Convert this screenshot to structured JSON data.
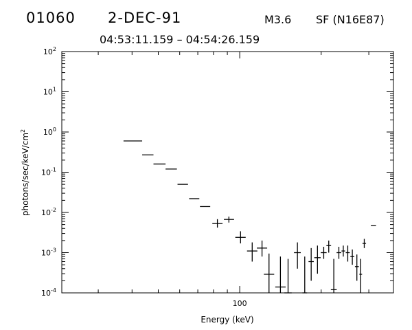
{
  "header": {
    "event_number": "01060",
    "date": "2-DEC-91",
    "goes_class": "M3.6",
    "flare_location": "SF (N16E87)",
    "time_range": "04:53:11.159 – 04:54:26.159"
  },
  "chart_data": {
    "type": "scatter",
    "title": "",
    "xlabel": "Energy (keV)",
    "ylabel": "photons/sec/keV/cm²",
    "x_scale": "log",
    "y_scale": "log",
    "xlim": [
      22,
      370
    ],
    "ylim": [
      0.0001,
      100
    ],
    "x_tick_labels": [
      {
        "value": 100,
        "label": "100"
      }
    ],
    "y_tick_labels": [
      {
        "value": 100,
        "base": "10",
        "exp": "2"
      },
      {
        "value": 10,
        "base": "10",
        "exp": "1"
      },
      {
        "value": 1,
        "base": "10",
        "exp": "0"
      },
      {
        "value": 0.1,
        "base": "10",
        "exp": "-1"
      },
      {
        "value": 0.01,
        "base": "10",
        "exp": "-2"
      },
      {
        "value": 0.001,
        "base": "10",
        "exp": "-3"
      },
      {
        "value": 0.0001,
        "base": "10",
        "exp": "-4"
      }
    ],
    "grid": false,
    "series": [
      {
        "points": [
          {
            "x": 40.2,
            "xlo": 37.2,
            "xhi": 43.6,
            "y": 0.6
          },
          {
            "x": 45.7,
            "xlo": 43.6,
            "xhi": 48.0,
            "y": 0.27
          },
          {
            "x": 50.6,
            "xlo": 48.0,
            "xhi": 53.2,
            "y": 0.16
          },
          {
            "x": 55.8,
            "xlo": 53.2,
            "xhi": 58.6,
            "y": 0.12
          },
          {
            "x": 61.6,
            "xlo": 58.9,
            "xhi": 64.4,
            "y": 0.05
          },
          {
            "x": 67.9,
            "xlo": 65.0,
            "xhi": 70.9,
            "y": 0.022
          },
          {
            "x": 74.5,
            "xlo": 71.3,
            "xhi": 77.8,
            "y": 0.014
          },
          {
            "x": 82.7,
            "xlo": 79.2,
            "xhi": 86.4,
            "y": 0.0053,
            "ylo": 0.0042,
            "yhi": 0.0068
          },
          {
            "x": 91.2,
            "xlo": 87.4,
            "xhi": 95.3,
            "y": 0.0067,
            "ylo": 0.0056,
            "yhi": 0.0079
          },
          {
            "x": 100.7,
            "xlo": 96.3,
            "xhi": 105.2,
            "y": 0.0024,
            "ylo": 0.0017,
            "yhi": 0.0034
          },
          {
            "x": 111.2,
            "xlo": 106.4,
            "xhi": 116.2,
            "y": 0.0011,
            "ylo": 0.0006,
            "yhi": 0.0018
          },
          {
            "x": 120.9,
            "xlo": 115.7,
            "xhi": 126.3,
            "y": 0.0013,
            "ylo": 0.0008,
            "yhi": 0.002
          },
          {
            "x": 128.3,
            "xlo": 122.8,
            "xhi": 134.1,
            "y": 0.00029,
            "ylo": 0.0001,
            "yhi": 0.00095
          },
          {
            "x": 141.4,
            "xlo": 135.3,
            "xhi": 147.8,
            "y": 0.00014,
            "ylo": 0.0001,
            "yhi": 0.0008
          },
          {
            "x": 150.9,
            "xlo": 146.2,
            "xhi": 155.6,
            "y": 0.0001,
            "ylo": 0.0001,
            "yhi": 0.0007
          },
          {
            "x": 163.4,
            "xlo": 158.7,
            "xhi": 168.1,
            "y": 0.001,
            "ylo": 0.0004,
            "yhi": 0.0018
          },
          {
            "x": 173.9,
            "xlo": 170.5,
            "xhi": 177.4,
            "y": 0.0001,
            "ylo": 0.0001,
            "yhi": 0.0008
          },
          {
            "x": 183.7,
            "xlo": 179.6,
            "xhi": 187.8,
            "y": 0.0006,
            "ylo": 0.0002,
            "yhi": 0.0013
          },
          {
            "x": 193.8,
            "xlo": 188.6,
            "xhi": 199.1,
            "y": 0.00075,
            "ylo": 0.0003,
            "yhi": 0.0015
          },
          {
            "x": 204.4,
            "xlo": 199.3,
            "xhi": 209.5,
            "y": 0.001,
            "ylo": 0.0007,
            "yhi": 0.0014
          },
          {
            "x": 213.3,
            "xlo": 209.1,
            "xhi": 217.6,
            "y": 0.0015,
            "ylo": 0.001,
            "yhi": 0.002
          },
          {
            "x": 222.7,
            "xlo": 217.2,
            "xhi": 228.3,
            "y": 0.00012,
            "ylo": 0.0001,
            "yhi": 0.0007
          },
          {
            "x": 232.5,
            "xlo": 228.0,
            "xhi": 237.2,
            "y": 0.001,
            "ylo": 0.0007,
            "yhi": 0.0014
          },
          {
            "x": 241.4,
            "xlo": 237.8,
            "xhi": 245.1,
            "y": 0.0011,
            "ylo": 0.0008,
            "yhi": 0.0015
          },
          {
            "x": 250.8,
            "xlo": 246.5,
            "xhi": 255.1,
            "y": 0.001,
            "ylo": 0.0006,
            "yhi": 0.0015
          },
          {
            "x": 260.7,
            "xlo": 256.4,
            "xhi": 265.1,
            "y": 0.0008,
            "ylo": 0.0005,
            "yhi": 0.0012
          },
          {
            "x": 271.0,
            "xlo": 266.6,
            "xhi": 275.5,
            "y": 0.00045,
            "ylo": 0.0002,
            "yhi": 0.0009
          },
          {
            "x": 280.0,
            "xlo": 276.7,
            "xhi": 283.3,
            "y": 0.00029,
            "ylo": 0.0001,
            "yhi": 0.0007
          },
          {
            "x": 288.6,
            "xlo": 284.3,
            "xhi": 293.0,
            "y": 0.0017,
            "ylo": 0.0013,
            "yhi": 0.0022
          },
          {
            "x": 312.1,
            "xlo": 305.3,
            "xhi": 319.0,
            "y": 0.0047
          }
        ]
      }
    ]
  }
}
